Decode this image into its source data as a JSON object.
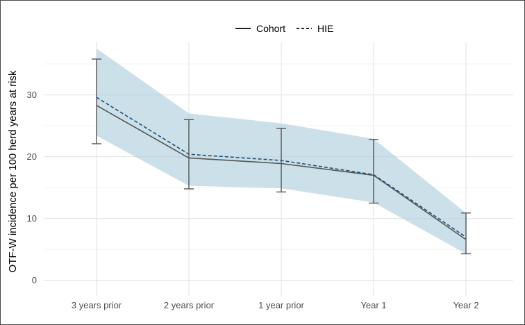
{
  "chart_data": {
    "type": "line",
    "title": "",
    "xlabel": "",
    "ylabel": "OTF-W incidence per 100 herd years at risk",
    "categories": [
      "3 years prior",
      "2 years prior",
      "1 year prior",
      "Year 1",
      "Year 2"
    ],
    "ylim": [
      -2.5,
      38.5
    ],
    "yticks": [
      0,
      10,
      20,
      30
    ],
    "grid": true,
    "legend_position": "top-center",
    "series": [
      {
        "name": "Cohort",
        "linestyle": "solid",
        "color": "#555555",
        "values": [
          28.3,
          19.8,
          18.9,
          17.0,
          6.6
        ]
      },
      {
        "name": "HIE",
        "linestyle": "dashed",
        "color": "#1f4e79",
        "values": [
          29.6,
          20.4,
          19.4,
          17.1,
          7.0
        ]
      }
    ],
    "error_bars": {
      "series": "Cohort",
      "lower": [
        22.1,
        14.8,
        14.3,
        12.5,
        4.3
      ],
      "upper": [
        35.8,
        26.0,
        24.6,
        22.8,
        10.9
      ]
    },
    "band": {
      "series": "HIE",
      "color": "#a9ccd9",
      "lower": [
        23.4,
        15.3,
        14.9,
        12.6,
        4.3
      ],
      "upper": [
        37.5,
        27.0,
        25.4,
        22.9,
        10.9
      ]
    }
  }
}
